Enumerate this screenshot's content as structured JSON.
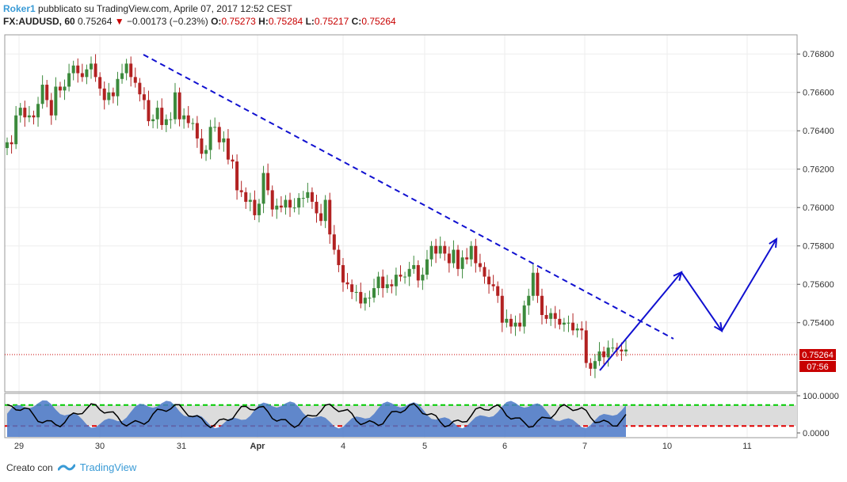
{
  "header": {
    "line1": {
      "author": "Roker1",
      "text": "pubblicato su TradingView.com, Aprile 07, 2017 12:52 CEST"
    },
    "line2": {
      "symbol": "FX:AUDUSD, 60",
      "last": "0.75264",
      "change": "−0.00173 (−0.23%)",
      "o_label": "O:",
      "o": "0.75273",
      "h_label": "H:",
      "h": "0.75284",
      "l_label": "L:",
      "l": "0.75217",
      "c_label": "C:",
      "c": "0.75264"
    }
  },
  "price_label": {
    "price": "0.75264",
    "countdown": "07:56"
  },
  "footer": {
    "created_with": "Creato con",
    "brand": "TradingView"
  },
  "colors": {
    "up": "#3c8a3c",
    "down": "#b22222",
    "trendline": "#1010d0",
    "oscillator_fill": "#4a78c8",
    "upper_band": "#00cc00",
    "lower_band": "#e00000"
  },
  "chart_data": {
    "type": "candlestick",
    "symbol": "FX:AUDUSD",
    "interval": "60",
    "y_ticks": [
      "0.76800",
      "0.76600",
      "0.76400",
      "0.76200",
      "0.76000",
      "0.75800",
      "0.75600",
      "0.75400"
    ],
    "x_ticks": [
      "29",
      "30",
      "31",
      "Apr",
      "4",
      "5",
      "6",
      "7",
      "10",
      "11"
    ],
    "ylim": [
      0.7504,
      0.769
    ],
    "closes": [
      0.7634,
      0.7633,
      0.7648,
      0.7652,
      0.7647,
      0.7648,
      0.7647,
      0.7654,
      0.7664,
      0.7656,
      0.7648,
      0.7663,
      0.7661,
      0.7663,
      0.767,
      0.7674,
      0.767,
      0.7668,
      0.7672,
      0.7675,
      0.7668,
      0.7662,
      0.7656,
      0.766,
      0.7658,
      0.7667,
      0.767,
      0.7675,
      0.7668,
      0.7665,
      0.7659,
      0.7656,
      0.7645,
      0.7646,
      0.7652,
      0.7643,
      0.7646,
      0.7646,
      0.766,
      0.7646,
      0.7648,
      0.7644,
      0.7644,
      0.7636,
      0.7628,
      0.763,
      0.7642,
      0.7642,
      0.7634,
      0.7636,
      0.7625,
      0.7624,
      0.7609,
      0.7608,
      0.7603,
      0.7604,
      0.7596,
      0.7602,
      0.7618,
      0.7609,
      0.7599,
      0.7601,
      0.76,
      0.7604,
      0.76,
      0.76,
      0.7605,
      0.7605,
      0.7608,
      0.7603,
      0.7597,
      0.7593,
      0.7604,
      0.7586,
      0.7578,
      0.757,
      0.7561,
      0.756,
      0.7556,
      0.7556,
      0.755,
      0.7553,
      0.7553,
      0.7558,
      0.7564,
      0.7558,
      0.756,
      0.7559,
      0.7565,
      0.7564,
      0.7564,
      0.7568,
      0.757,
      0.7562,
      0.7565,
      0.7573,
      0.758,
      0.7576,
      0.758,
      0.7576,
      0.7571,
      0.7578,
      0.7568,
      0.7574,
      0.7573,
      0.758,
      0.7571,
      0.7569,
      0.7564,
      0.756,
      0.7559,
      0.7554,
      0.754,
      0.7542,
      0.7538,
      0.754,
      0.7538,
      0.7549,
      0.7554,
      0.7566,
      0.7554,
      0.7544,
      0.7542,
      0.7545,
      0.7542,
      0.7539,
      0.754,
      0.754,
      0.7536,
      0.7537,
      0.7536,
      0.7519,
      0.7516,
      0.752,
      0.7525,
      0.7522,
      0.7527,
      0.7527,
      0.7526,
      0.7525,
      0.7526
    ]
  },
  "oscillator": {
    "y_ticks": [
      "100.0000",
      "0.0000"
    ],
    "upper_band": 80,
    "lower_band": 20
  }
}
